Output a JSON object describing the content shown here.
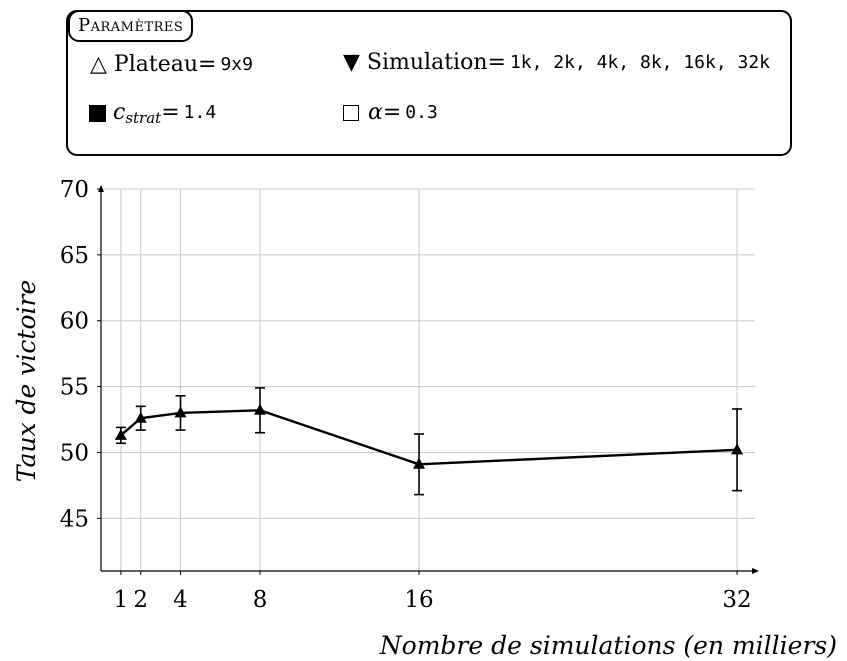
{
  "params": {
    "title": "Paramètres",
    "board": {
      "label": "Plateau=",
      "value": "9x9",
      "icon": "triangle-outline-icon"
    },
    "simulation": {
      "label": "Simulation=",
      "value": "1k, 2k, 4k, 8k, 16k, 32k",
      "icon": "triangle-filled-down-icon"
    },
    "cstrat": {
      "symbol": "c",
      "subscript": "strat",
      "label": "=",
      "value": "1.4",
      "icon": "square-filled-icon"
    },
    "alpha": {
      "symbol": "α",
      "label": "=",
      "value": "0.3",
      "icon": "square-outline-icon"
    }
  },
  "chart_data": {
    "type": "line",
    "xlabel": "Nombre de simulations (en milliers)",
    "ylabel": "Taux de victoire",
    "x_ticks": [
      1,
      2,
      4,
      8,
      16,
      32
    ],
    "y_ticks": [
      45,
      50,
      55,
      60,
      65,
      70
    ],
    "xlim": [
      0,
      32.5
    ],
    "ylim": [
      41,
      70
    ],
    "grid": true,
    "series": [
      {
        "marker": "triangle",
        "color": "#000000",
        "points": [
          {
            "x": 1,
            "y": 51.3,
            "err": 0.6
          },
          {
            "x": 2,
            "y": 52.6,
            "err": 0.9
          },
          {
            "x": 4,
            "y": 53.0,
            "err": 1.3
          },
          {
            "x": 8,
            "y": 53.2,
            "err": 1.7
          },
          {
            "x": 16,
            "y": 49.1,
            "err": 2.3
          },
          {
            "x": 32,
            "y": 50.2,
            "err": 3.1
          }
        ]
      }
    ]
  }
}
